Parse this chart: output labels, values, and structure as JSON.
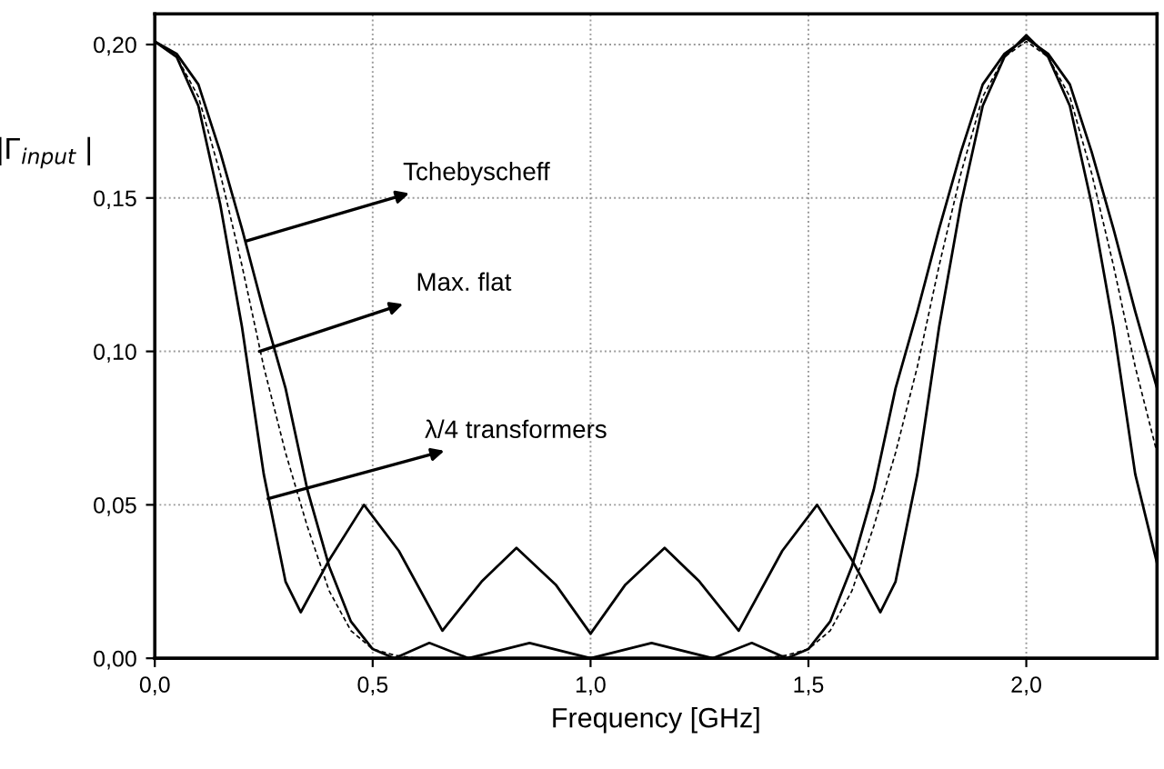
{
  "chart_data": {
    "type": "line",
    "xlabel": "Frequency [GHz]",
    "ylabel": "|Γ$_{input}$ |",
    "xlim": [
      0,
      2.3
    ],
    "ylim": [
      0,
      0.21
    ],
    "xticks": [
      {
        "value": 0,
        "label": "0,0"
      },
      {
        "value": 0.5,
        "label": "0,5"
      },
      {
        "value": 1.0,
        "label": "1,0"
      },
      {
        "value": 1.5,
        "label": "1,5"
      },
      {
        "value": 2.0,
        "label": "2,0"
      }
    ],
    "yticks": [
      {
        "value": 0,
        "label": "0,00"
      },
      {
        "value": 0.05,
        "label": "0,05"
      },
      {
        "value": 0.1,
        "label": "0,10"
      },
      {
        "value": 0.15,
        "label": "0,15"
      },
      {
        "value": 0.2,
        "label": "0,20"
      }
    ],
    "grid": true,
    "marker": "none",
    "series": [
      {
        "color": "#000000",
        "line_style": "solid",
        "x": [
          0,
          0.05,
          0.1,
          0.15,
          0.2,
          0.25,
          0.3,
          0.35,
          0.4,
          0.45,
          0.5,
          0.55,
          0.63,
          0.72,
          0.86,
          1.0,
          1.14,
          1.28,
          1.37,
          1.45,
          1.5,
          1.55,
          1.6,
          1.65,
          1.7,
          1.75,
          1.8,
          1.85,
          1.9,
          1.95,
          2.0,
          2.05,
          2.1,
          2.15,
          2.2,
          2.25,
          2.3
        ],
        "values": [
          0.201,
          0.197,
          0.187,
          0.165,
          0.14,
          0.113,
          0.088,
          0.055,
          0.03,
          0.012,
          0.003,
          0,
          0.005,
          0,
          0.005,
          0,
          0.005,
          0,
          0.005,
          0,
          0.003,
          0.012,
          0.03,
          0.055,
          0.088,
          0.113,
          0.14,
          0.165,
          0.187,
          0.197,
          0.202,
          0.197,
          0.187,
          0.165,
          0.14,
          0.113,
          0.088
        ]
      },
      {
        "color": "#000000",
        "line_style": "dashed",
        "x": [
          0,
          0.05,
          0.1,
          0.15,
          0.2,
          0.25,
          0.3,
          0.35,
          0.4,
          0.45,
          0.5,
          0.55,
          0.6,
          1.0,
          1.4,
          1.45,
          1.5,
          1.55,
          1.6,
          1.65,
          1.7,
          1.75,
          1.8,
          1.85,
          1.9,
          1.95,
          2.0,
          2.05,
          2.1,
          2.15,
          2.2,
          2.25,
          2.3
        ],
        "values": [
          0.201,
          0.196,
          0.183,
          0.158,
          0.128,
          0.095,
          0.067,
          0.043,
          0.022,
          0.009,
          0.003,
          0.001,
          0,
          0,
          0,
          0.001,
          0.003,
          0.009,
          0.022,
          0.043,
          0.067,
          0.095,
          0.128,
          0.158,
          0.183,
          0.196,
          0.201,
          0.196,
          0.183,
          0.158,
          0.128,
          0.095,
          0.067
        ]
      },
      {
        "color": "#000000",
        "line_style": "solid",
        "x": [
          0,
          0.05,
          0.1,
          0.15,
          0.2,
          0.25,
          0.3,
          0.335,
          0.4,
          0.48,
          0.56,
          0.66,
          0.75,
          0.83,
          0.92,
          1.0,
          1.08,
          1.17,
          1.25,
          1.34,
          1.44,
          1.52,
          1.6,
          1.665,
          1.7,
          1.75,
          1.8,
          1.85,
          1.9,
          1.95,
          2.0,
          2.05,
          2.1,
          2.15,
          2.2,
          2.25,
          2.3
        ],
        "values": [
          0.201,
          0.196,
          0.18,
          0.148,
          0.108,
          0.06,
          0.025,
          0.015,
          0.032,
          0.05,
          0.035,
          0.009,
          0.025,
          0.036,
          0.024,
          0.008,
          0.024,
          0.036,
          0.025,
          0.009,
          0.035,
          0.05,
          0.032,
          0.015,
          0.025,
          0.06,
          0.108,
          0.148,
          0.18,
          0.196,
          0.203,
          0.196,
          0.18,
          0.148,
          0.108,
          0.06,
          0.031
        ]
      }
    ],
    "annotations": [
      {
        "text": "Tchebyscheff",
        "x": 0.21,
        "y": 0.136
      },
      {
        "text": "Max. flat",
        "x": 0.24,
        "y": 0.1
      },
      {
        "text": "λ/4 transformers",
        "x": 0.26,
        "y": 0.052
      }
    ]
  }
}
